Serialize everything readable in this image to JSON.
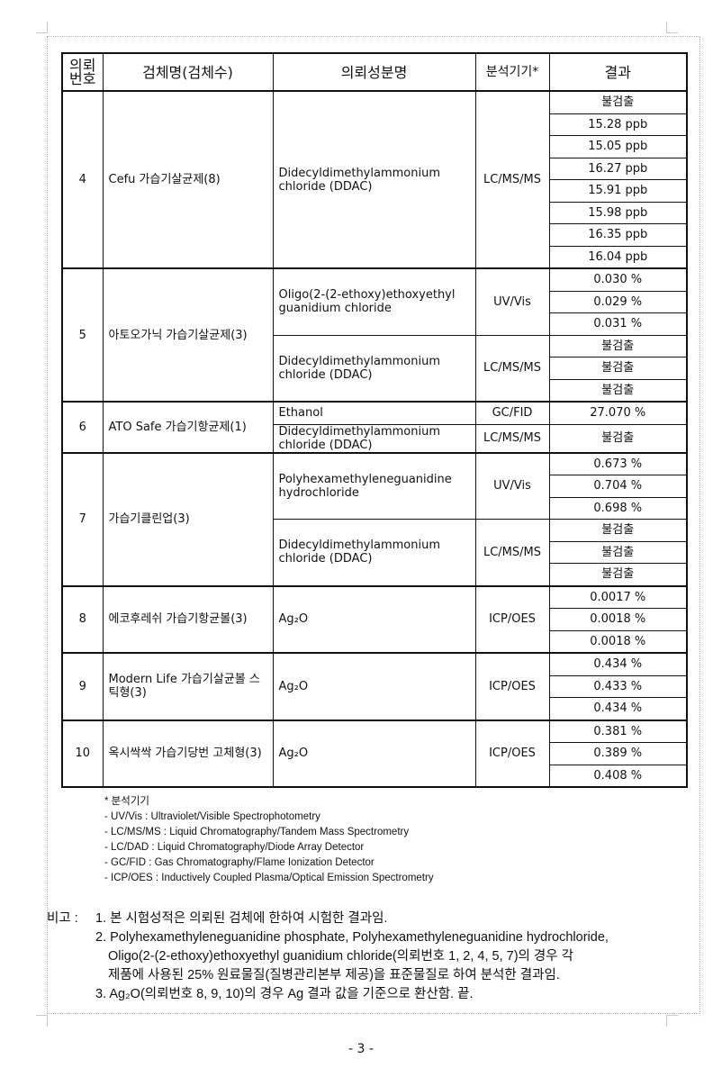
{
  "table": {
    "headers": {
      "no": "의뢰\n번호",
      "sample": "검체명(검체수)",
      "component": "의뢰성분명",
      "instrument": "분석기기*",
      "result": "결과"
    },
    "groups": [
      {
        "no": "4",
        "sample": "Cefu 가습기살균제(8)",
        "components": [
          {
            "name": "Didecyldimethylammonium chloride (DDAC)",
            "instrument": "LC/MS/MS",
            "results": [
              "불검출",
              "15.28 ppb",
              "15.05 ppb",
              "16.27 ppb",
              "15.91 ppb",
              "15.98 ppb",
              "16.35 ppb",
              "16.04 ppb"
            ]
          }
        ]
      },
      {
        "no": "5",
        "sample": "아토오가닉 가습기살균제(3)",
        "components": [
          {
            "name": "Oligo(2-(2-ethoxy)ethoxyethyl guanidium chloride",
            "instrument": "UV/Vis",
            "results": [
              "0.030 %",
              "0.029 %",
              "0.031 %"
            ]
          },
          {
            "name": "Didecyldimethylammonium chloride (DDAC)",
            "instrument": "LC/MS/MS",
            "results": [
              "불검출",
              "불검출",
              "불검출"
            ]
          }
        ]
      },
      {
        "no": "6",
        "sample": "ATO Safe 가습기항균제(1)",
        "components": [
          {
            "name": "Ethanol",
            "instrument": "GC/FID",
            "results": [
              "27.070 %"
            ]
          },
          {
            "name": "Didecyldimethylammonium chloride (DDAC)",
            "instrument": "LC/MS/MS",
            "results": [
              "불검출"
            ]
          }
        ]
      },
      {
        "no": "7",
        "sample": "가습기클린업(3)",
        "components": [
          {
            "name": "Polyhexamethyleneguanidine hydrochloride",
            "instrument": "UV/Vis",
            "results": [
              "0.673 %",
              "0.704 %",
              "0.698 %"
            ]
          },
          {
            "name": "Didecyldimethylammonium chloride (DDAC)",
            "instrument": "LC/MS/MS",
            "results": [
              "불검출",
              "불검출",
              "불검출"
            ]
          }
        ]
      },
      {
        "no": "8",
        "sample": "에코후레쉬 가습기항균볼(3)",
        "components": [
          {
            "name": "Ag₂O",
            "instrument": "ICP/OES",
            "results": [
              "0.0017 %",
              "0.0018 %",
              "0.0018 %"
            ]
          }
        ]
      },
      {
        "no": "9",
        "sample": "Modern Life 가습기살균볼 스틱형(3)",
        "components": [
          {
            "name": "Ag₂O",
            "instrument": "ICP/OES",
            "results": [
              "0.434 %",
              "0.433 %",
              "0.434 %"
            ]
          }
        ]
      },
      {
        "no": "10",
        "sample": "옥시싹싹 가습기당번 고체형(3)",
        "components": [
          {
            "name": "Ag₂O",
            "instrument": "ICP/OES",
            "results": [
              "0.381 %",
              "0.389 %",
              "0.408 %"
            ]
          }
        ]
      }
    ]
  },
  "footnotes": {
    "title": "* 분석기기",
    "items": [
      "- UV/Vis : Ultraviolet/Visible Spectrophotometry",
      "- LC/MS/MS : Liquid Chromatography/Tandem Mass Spectrometry",
      "- LC/DAD : Liquid Chromatography/Diode Array Detector",
      "- GC/FID : Gas Chromatography/Flame Ionization Detector",
      "- ICP/OES : Inductively Coupled Plasma/Optical Emission Spectrometry"
    ]
  },
  "remarks": {
    "label": "비고 :",
    "item1": "1. 본 시험성적은 의뢰된 검체에 한하여 시험한 결과임.",
    "item2_line1": "2. Polyhexamethyleneguanidine phosphate, Polyhexamethyleneguanidine hydrochloride,",
    "item2_line2": "Oligo(2-(2-ethoxy)ethoxyethyl guanidium chloride(의뢰번호 1, 2, 4, 5, 7)의 경우 각",
    "item2_line3": "제품에 사용된 25% 원료물질(질병관리본부 제공)을 표준물질로 하여 분석한 결과임.",
    "item3": "3. Ag₂O(의뢰번호 8, 9, 10)의 경우 Ag 결과 값을 기준으로 환산함. 끝."
  },
  "page_number": "- 3 -"
}
